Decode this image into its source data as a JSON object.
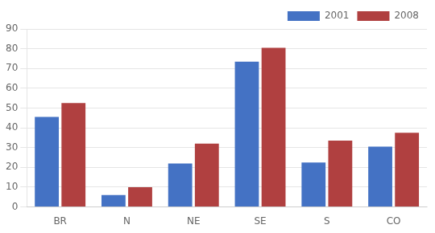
{
  "chart_data": {
    "type": "bar",
    "categories": [
      "BR",
      "N",
      "NE",
      "SE",
      "S",
      "CO"
    ],
    "series": [
      {
        "name": "2001",
        "color": "#4472C4",
        "values": [
          45.5,
          6.0,
          22.0,
          73.5,
          22.5,
          30.5
        ]
      },
      {
        "name": "2008",
        "color": "#B04040",
        "values": [
          52.5,
          10.0,
          32.0,
          80.5,
          33.5,
          37.5
        ]
      }
    ],
    "ylim": [
      0,
      90
    ],
    "yticks": [
      0,
      10,
      20,
      30,
      40,
      50,
      60,
      70,
      80,
      90
    ],
    "grid": true,
    "legend": "upper right"
  }
}
